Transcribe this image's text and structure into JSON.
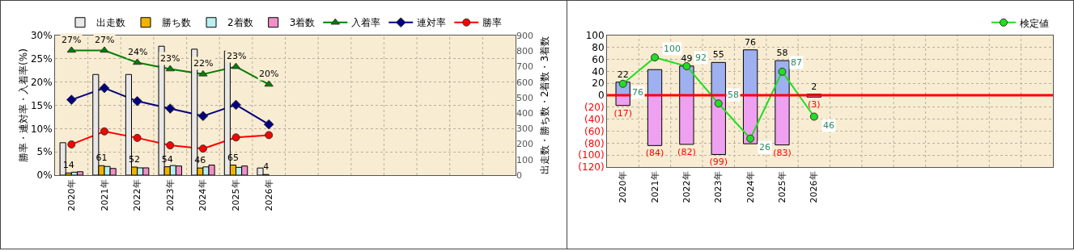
{
  "chart_data": [
    {
      "type": "bar",
      "categories": [
        "2020年",
        "2021年",
        "2022年",
        "2023年",
        "2024年",
        "2025年",
        "2026年",
        null,
        null,
        null,
        null,
        null,
        null,
        null
      ],
      "ylabel": "勝率・連対率・入着率(%)",
      "y2label": "出走数・勝ち数・2着数・3着数",
      "ylim": [
        0,
        30
      ],
      "yticks": [
        {
          "value": 0,
          "label": "0%"
        },
        {
          "value": 5,
          "label": "5%"
        },
        {
          "value": 10,
          "label": "10%"
        },
        {
          "value": 15,
          "label": "15%"
        },
        {
          "value": 20,
          "label": "20%"
        },
        {
          "value": 25,
          "label": "25%"
        },
        {
          "value": 30,
          "label": "30%"
        }
      ],
      "y2lim": [
        0,
        900
      ],
      "y2ticks": [
        0,
        100,
        200,
        300,
        400,
        500,
        600,
        700,
        800,
        900
      ],
      "grid": true,
      "legend": "top",
      "series": [
        {
          "name": "出走数",
          "color": "#e8e8e8",
          "axis": "y2",
          "values": [
            209,
            649,
            649,
            831,
            812,
            800,
            46,
            null,
            null,
            null,
            null,
            null,
            null,
            null
          ]
        },
        {
          "name": "勝ち数",
          "color": "#f0b400",
          "axis": "y2",
          "values": [
            14,
            61,
            52,
            54,
            46,
            65,
            4,
            null,
            null,
            null,
            null,
            null,
            null,
            null
          ],
          "value_labels": [
            "14",
            "61",
            "52",
            "54",
            "46",
            "65",
            "4",
            null,
            null,
            null,
            null,
            null,
            null,
            null
          ]
        },
        {
          "name": "2着数",
          "color": "#b8f0f0",
          "axis": "y2",
          "values": [
            19,
            56,
            47,
            62,
            53,
            50,
            0,
            null,
            null,
            null,
            null,
            null,
            null,
            null
          ]
        },
        {
          "name": "3着数",
          "color": "#f090c8",
          "axis": "y2",
          "values": [
            22,
            43,
            47,
            59,
            65,
            59,
            0,
            null,
            null,
            null,
            null,
            null,
            null,
            null
          ]
        },
        {
          "name": "入着率",
          "type": "line",
          "color": "#008000",
          "marker": "triangle",
          "values": [
            26.8,
            26.8,
            24.2,
            22.8,
            21.7,
            23.3,
            19.5,
            null,
            null,
            null,
            null,
            null,
            null,
            null
          ],
          "value_labels": [
            "27%",
            "27%",
            "24%",
            "23%",
            "22%",
            "23%",
            "20%",
            null,
            null,
            null,
            null,
            null,
            null,
            null
          ]
        },
        {
          "name": "連対率",
          "type": "line",
          "color": "#000080",
          "marker": "diamond",
          "values": [
            16.2,
            18.7,
            15.9,
            14.3,
            12.7,
            15.1,
            10.9,
            null,
            null,
            null,
            null,
            null,
            null,
            null
          ]
        },
        {
          "name": "勝率",
          "type": "line",
          "color": "#ff0000",
          "marker": "circle",
          "values": [
            6.6,
            9.4,
            8.0,
            6.4,
            5.7,
            8.1,
            8.6,
            null,
            null,
            null,
            null,
            null,
            null,
            null
          ]
        }
      ]
    },
    {
      "type": "bar",
      "stacked": true,
      "categories": [
        "2020年",
        "2021年",
        "2022年",
        "2023年",
        "2024年",
        "2025年",
        "2026年",
        null,
        null,
        null,
        null,
        null,
        null,
        null
      ],
      "ylim": [
        -120,
        100
      ],
      "yticks": [
        100,
        80,
        60,
        40,
        20,
        0,
        {
          "value": -20,
          "label": "(20)"
        },
        {
          "value": -40,
          "label": "(40)"
        },
        {
          "value": -60,
          "label": "(60)"
        },
        {
          "value": -80,
          "label": "(80)"
        },
        {
          "value": -100,
          "label": "(100)"
        },
        {
          "value": -120,
          "label": "(120)"
        }
      ],
      "y2lim": [
        0,
        120
      ],
      "grid": true,
      "legend": "top right",
      "ref_lines": [
        {
          "axis": "y",
          "value": 0,
          "color": "#ff0000"
        }
      ],
      "series": [
        {
          "color": "#9fb0f0",
          "values": [
            22,
            43,
            49,
            55,
            76,
            58,
            2,
            null,
            null,
            null,
            null,
            null,
            null,
            null
          ],
          "value_labels": [
            "22",
            null,
            "49",
            "55",
            "76",
            "58",
            "2",
            null,
            null,
            null,
            null,
            null,
            null,
            null
          ]
        },
        {
          "color": "#f0a0f0",
          "values": [
            -17,
            -84,
            -82,
            -99,
            -81,
            -83,
            -3,
            null,
            null,
            null,
            null,
            null,
            null,
            null
          ],
          "value_labels": [
            "(17)",
            "(84)",
            "(82)",
            "(99)",
            null,
            "(83)",
            "(3)",
            null,
            null,
            null,
            null,
            null,
            null,
            null
          ]
        },
        {
          "name": "検定値",
          "type": "line",
          "color": "#22dd22",
          "marker": "circle",
          "axis": "y2",
          "values": [
            76,
            100,
            92,
            58,
            26,
            87,
            46,
            null,
            null,
            null,
            null,
            null,
            null,
            null
          ],
          "value_labels": [
            "76",
            "100",
            "92",
            "58",
            "26",
            "87",
            "46",
            null,
            null,
            null,
            null,
            null,
            null,
            null
          ]
        }
      ]
    }
  ]
}
